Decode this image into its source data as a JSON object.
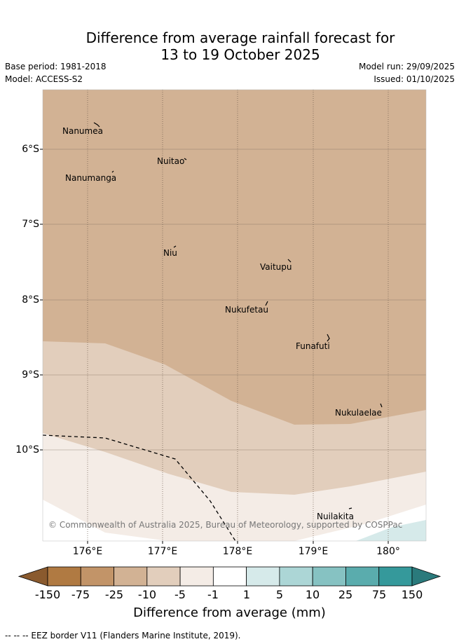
{
  "header": {
    "title_line1": "Difference from average rainfall forecast for",
    "title_line2": "13 to 19 October 2025",
    "base_period": "Base period: 1981-2018",
    "model": "Model: ACCESS-S2",
    "model_run": "Model run: 29/09/2025",
    "issued": "Issued: 01/10/2025"
  },
  "map": {
    "lat_labels": [
      "6°S",
      "7°S",
      "8°S",
      "9°S",
      "10°S"
    ],
    "lon_labels": [
      "176°E",
      "177°E",
      "178°E",
      "179°E",
      "180°"
    ],
    "places": [
      "Nanumea",
      "Nuitao",
      "Nanumanga",
      "Niu",
      "Vaitupu",
      "Nukufetau",
      "Funafuti",
      "Nukulaelae",
      "Nuilakita"
    ],
    "copyright": "© Commonwealth of Australia 2025, Bureau of Meteorology, supported by COSPPac"
  },
  "colorbar": {
    "labels": [
      "-150",
      "-75",
      "-25",
      "-10",
      "-5",
      "-1",
      "1",
      "5",
      "10",
      "25",
      "75",
      "150"
    ],
    "colors": [
      "#8a5a2e",
      "#b07a42",
      "#c29468",
      "#d2b294",
      "#e2cebc",
      "#f4ece6",
      "#ffffff",
      "#d6eaea",
      "#acd6d6",
      "#86c2c2",
      "#5aacad",
      "#35999b",
      "#2a7a7c"
    ],
    "title": "Difference from average (mm)"
  },
  "footer": {
    "legend": "-- -- -- EEZ border V11 (Flanders Marine Institute, 2019)."
  }
}
